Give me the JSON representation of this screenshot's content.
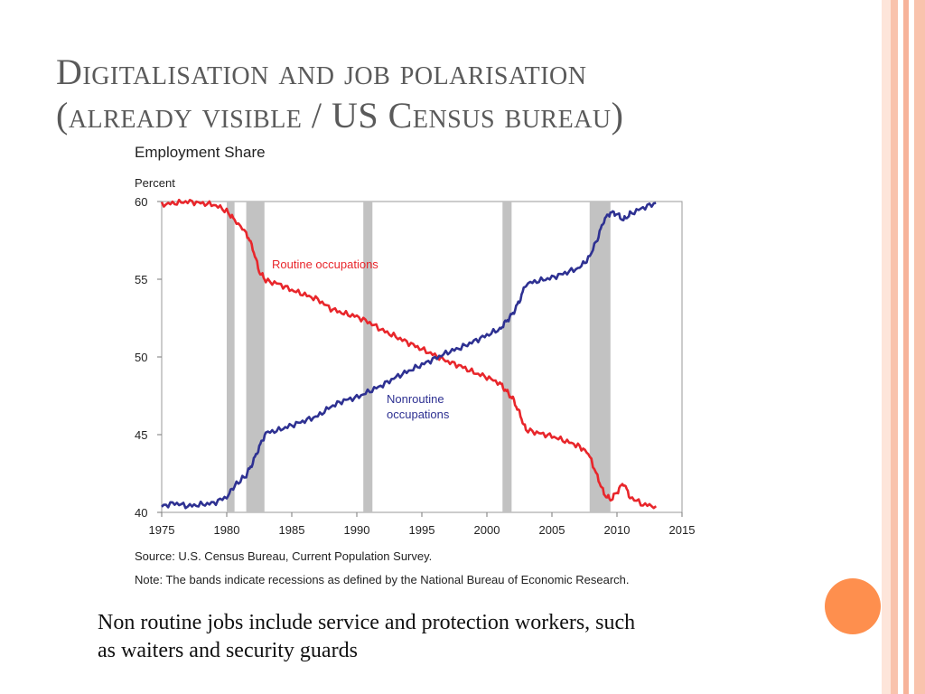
{
  "slide": {
    "title_line1": "Digitalisation and job polarisation",
    "title_line2": "(already visible / US Census bureau)",
    "caption_line1": "Non routine jobs include service and protection workers, such",
    "caption_line2": "as waiters and security guards"
  },
  "theme": {
    "routine_color": "#e8262b",
    "nonroutine_color": "#2e3192",
    "recession_color": "#c2c2c2",
    "accent_orange": "#fe8f4e",
    "border_peach": "#f7b39a"
  },
  "chart_data": {
    "type": "line",
    "title": "Employment Share",
    "ylabel": "Percent",
    "xlim": [
      1975,
      2015
    ],
    "ylim": [
      40,
      60
    ],
    "x_ticks": [
      "1975",
      "1980",
      "1985",
      "1990",
      "1995",
      "2000",
      "2005",
      "2010",
      "2015"
    ],
    "y_ticks": [
      "60",
      "55",
      "50",
      "45",
      "40"
    ],
    "source": "Source: U.S. Census Bureau, Current Population Survey.",
    "note": "Note: The bands indicate recessions as defined by the National Bureau of Economic Research.",
    "recessions": [
      [
        1980.0,
        1980.6
      ],
      [
        1981.5,
        1982.9
      ],
      [
        1990.5,
        1991.2
      ],
      [
        2001.2,
        2001.9
      ],
      [
        2007.9,
        2009.5
      ]
    ],
    "series": [
      {
        "name": "Routine occupations",
        "color": "#e8262b",
        "x": [
          1975.0,
          1976.0,
          1977.0,
          1978.0,
          1979.0,
          1980.0,
          1980.6,
          1981.5,
          1982.0,
          1982.5,
          1983.0,
          1984.0,
          1985.0,
          1986.0,
          1987.0,
          1988.0,
          1989.0,
          1990.0,
          1991.0,
          1992.0,
          1993.0,
          1994.0,
          1995.0,
          1996.0,
          1997.0,
          1998.0,
          1999.0,
          2000.0,
          2001.0,
          2001.5,
          2002.0,
          2002.5,
          2003.0,
          2004.0,
          2005.0,
          2006.0,
          2007.0,
          2007.8,
          2008.5,
          2009.0,
          2009.5,
          2010.0,
          2010.5,
          2011.0,
          2012.0,
          2013.0
        ],
        "values": [
          59.8,
          59.9,
          60.0,
          59.9,
          59.8,
          59.4,
          58.8,
          58.0,
          57.0,
          55.5,
          54.9,
          54.7,
          54.3,
          54.0,
          53.7,
          53.1,
          52.8,
          52.6,
          52.2,
          51.7,
          51.3,
          50.9,
          50.5,
          50.1,
          49.7,
          49.4,
          49.0,
          48.7,
          48.3,
          47.8,
          47.3,
          46.4,
          45.3,
          45.1,
          44.9,
          44.6,
          44.3,
          43.8,
          42.3,
          41.2,
          40.8,
          41.3,
          41.9,
          41.0,
          40.5,
          40.4
        ]
      },
      {
        "name": "Nonroutine occupations",
        "color": "#2e3192",
        "x": [
          1975.0,
          1976.0,
          1977.0,
          1978.0,
          1979.0,
          1980.0,
          1980.6,
          1981.5,
          1982.0,
          1982.5,
          1983.0,
          1984.0,
          1985.0,
          1986.0,
          1987.0,
          1988.0,
          1989.0,
          1990.0,
          1991.0,
          1992.0,
          1993.0,
          1994.0,
          1995.0,
          1996.0,
          1997.0,
          1998.0,
          1999.0,
          2000.0,
          2001.0,
          2001.5,
          2002.0,
          2002.5,
          2003.0,
          2004.0,
          2005.0,
          2006.0,
          2007.0,
          2007.8,
          2008.5,
          2009.0,
          2009.5,
          2010.0,
          2010.5,
          2011.0,
          2012.0,
          2013.0
        ],
        "values": [
          40.4,
          40.6,
          40.4,
          40.5,
          40.6,
          41.0,
          41.7,
          42.4,
          43.2,
          44.2,
          45.1,
          45.3,
          45.6,
          45.9,
          46.2,
          46.8,
          47.2,
          47.4,
          47.8,
          48.2,
          48.7,
          49.1,
          49.5,
          49.9,
          50.3,
          50.6,
          51.0,
          51.4,
          51.8,
          52.3,
          52.8,
          53.6,
          54.7,
          54.9,
          55.1,
          55.4,
          55.7,
          56.3,
          57.6,
          58.8,
          59.3,
          59.2,
          58.8,
          59.2,
          59.6,
          59.9
        ]
      }
    ],
    "labels": {
      "routine": "Routine occupations",
      "nonroutine_line1": "Nonroutine",
      "nonroutine_line2": "occupations"
    }
  }
}
